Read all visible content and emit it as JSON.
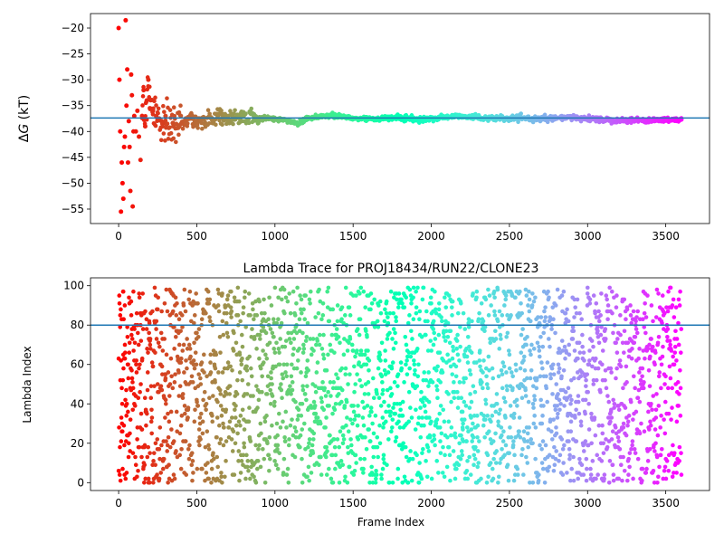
{
  "chart_data": [
    {
      "type": "scatter",
      "title": "",
      "xlabel": "",
      "ylabel": "ΔG (kT)",
      "ylabel_delta": "Δ",
      "ylabel_var": "G",
      "ylabel_unit": " (kT)",
      "xlim": [
        -180,
        3780
      ],
      "ylim": [
        -57.8,
        -17.2
      ],
      "xticks": [
        0,
        500,
        1000,
        1500,
        2000,
        2500,
        3000,
        3500
      ],
      "yticks": [
        -55,
        -50,
        -45,
        -40,
        -35,
        -30,
        -25,
        -20
      ],
      "hline": -37.4,
      "colormap": "rainbow (red at frame 0 to violet at frame 3600)",
      "description": "Running ΔG estimate per frame; large early scatter converging to about -37.5",
      "series": [
        {
          "x": [
            0,
            5,
            10,
            15,
            20,
            25,
            30,
            35,
            40,
            45,
            50,
            55,
            60,
            65,
            70,
            75,
            80,
            85,
            90,
            95,
            100,
            110,
            120,
            130,
            140,
            150,
            160,
            170,
            180,
            190,
            200,
            220,
            240,
            260,
            280,
            300,
            350,
            400,
            450,
            500,
            600,
            650,
            700,
            800,
            900,
            1000,
            1100,
            1150,
            1200,
            1300,
            1400,
            1500,
            1600,
            1700,
            1800,
            1900,
            2000,
            2100,
            2200,
            2300,
            2400,
            2500,
            2600,
            2700,
            2800,
            2900,
            3000,
            3100,
            3200,
            3300,
            3400,
            3500,
            3600
          ],
          "y": [
            -20,
            -30,
            -40,
            -55.5,
            -46,
            -50,
            -53,
            -43,
            -41,
            -18.5,
            -35,
            -28,
            -46,
            -38,
            -43,
            -51.5,
            -29,
            -33,
            -54.5,
            -40,
            -37,
            -40,
            -36,
            -41,
            -45.5,
            -37,
            -32,
            -39,
            -34,
            -30,
            -35.5,
            -36,
            -37,
            -37.5,
            -38.5,
            -37,
            -39,
            -38.5,
            -37.5,
            -38,
            -37.5,
            -36.5,
            -38,
            -37,
            -37.5,
            -37.5,
            -38,
            -38.5,
            -37.5,
            -37,
            -37,
            -37.5,
            -37.5,
            -37.5,
            -37.3,
            -37.7,
            -37.5,
            -37.2,
            -37,
            -37.3,
            -37.5,
            -37.5,
            -37.5,
            -37.5,
            -37.5,
            -37.3,
            -37.5,
            -37.7,
            -37.8,
            -37.8,
            -37.8,
            -37.7,
            -37.7
          ]
        }
      ]
    },
    {
      "type": "scatter",
      "title": "Lambda Trace for PROJ18434/RUN22/CLONE23",
      "xlabel": "Frame Index",
      "ylabel": "Lambda Index",
      "xlim": [
        -180,
        3780
      ],
      "ylim": [
        -4,
        104
      ],
      "xticks": [
        0,
        500,
        1000,
        1500,
        2000,
        2500,
        3000,
        3500
      ],
      "yticks": [
        0,
        20,
        40,
        60,
        80,
        100
      ],
      "hline": 80,
      "colormap": "rainbow (red at frame 0 to violet at frame 3600)",
      "description": "Lambda index visited per frame (0-99), roughly uniformly distributed across 0-3600 frames",
      "series": [
        {
          "x": [
            0,
            10,
            20,
            30,
            40,
            60,
            80,
            100,
            150,
            200,
            250,
            300,
            400,
            500,
            600,
            700,
            800,
            900,
            1000,
            1200,
            1400,
            1600,
            1800,
            2000,
            2200,
            2400,
            2600,
            2800,
            3000,
            3200,
            3400,
            3600
          ],
          "y": [
            6,
            85,
            48,
            97,
            70,
            24,
            92,
            40,
            62,
            15,
            88,
            53,
            7,
            76,
            31,
            95,
            44,
            19,
            66,
            3,
            82,
            57,
            28,
            91,
            36,
            12,
            73,
            50,
            99,
            21,
            64,
            4
          ],
          "sampled": true
        }
      ]
    }
  ]
}
